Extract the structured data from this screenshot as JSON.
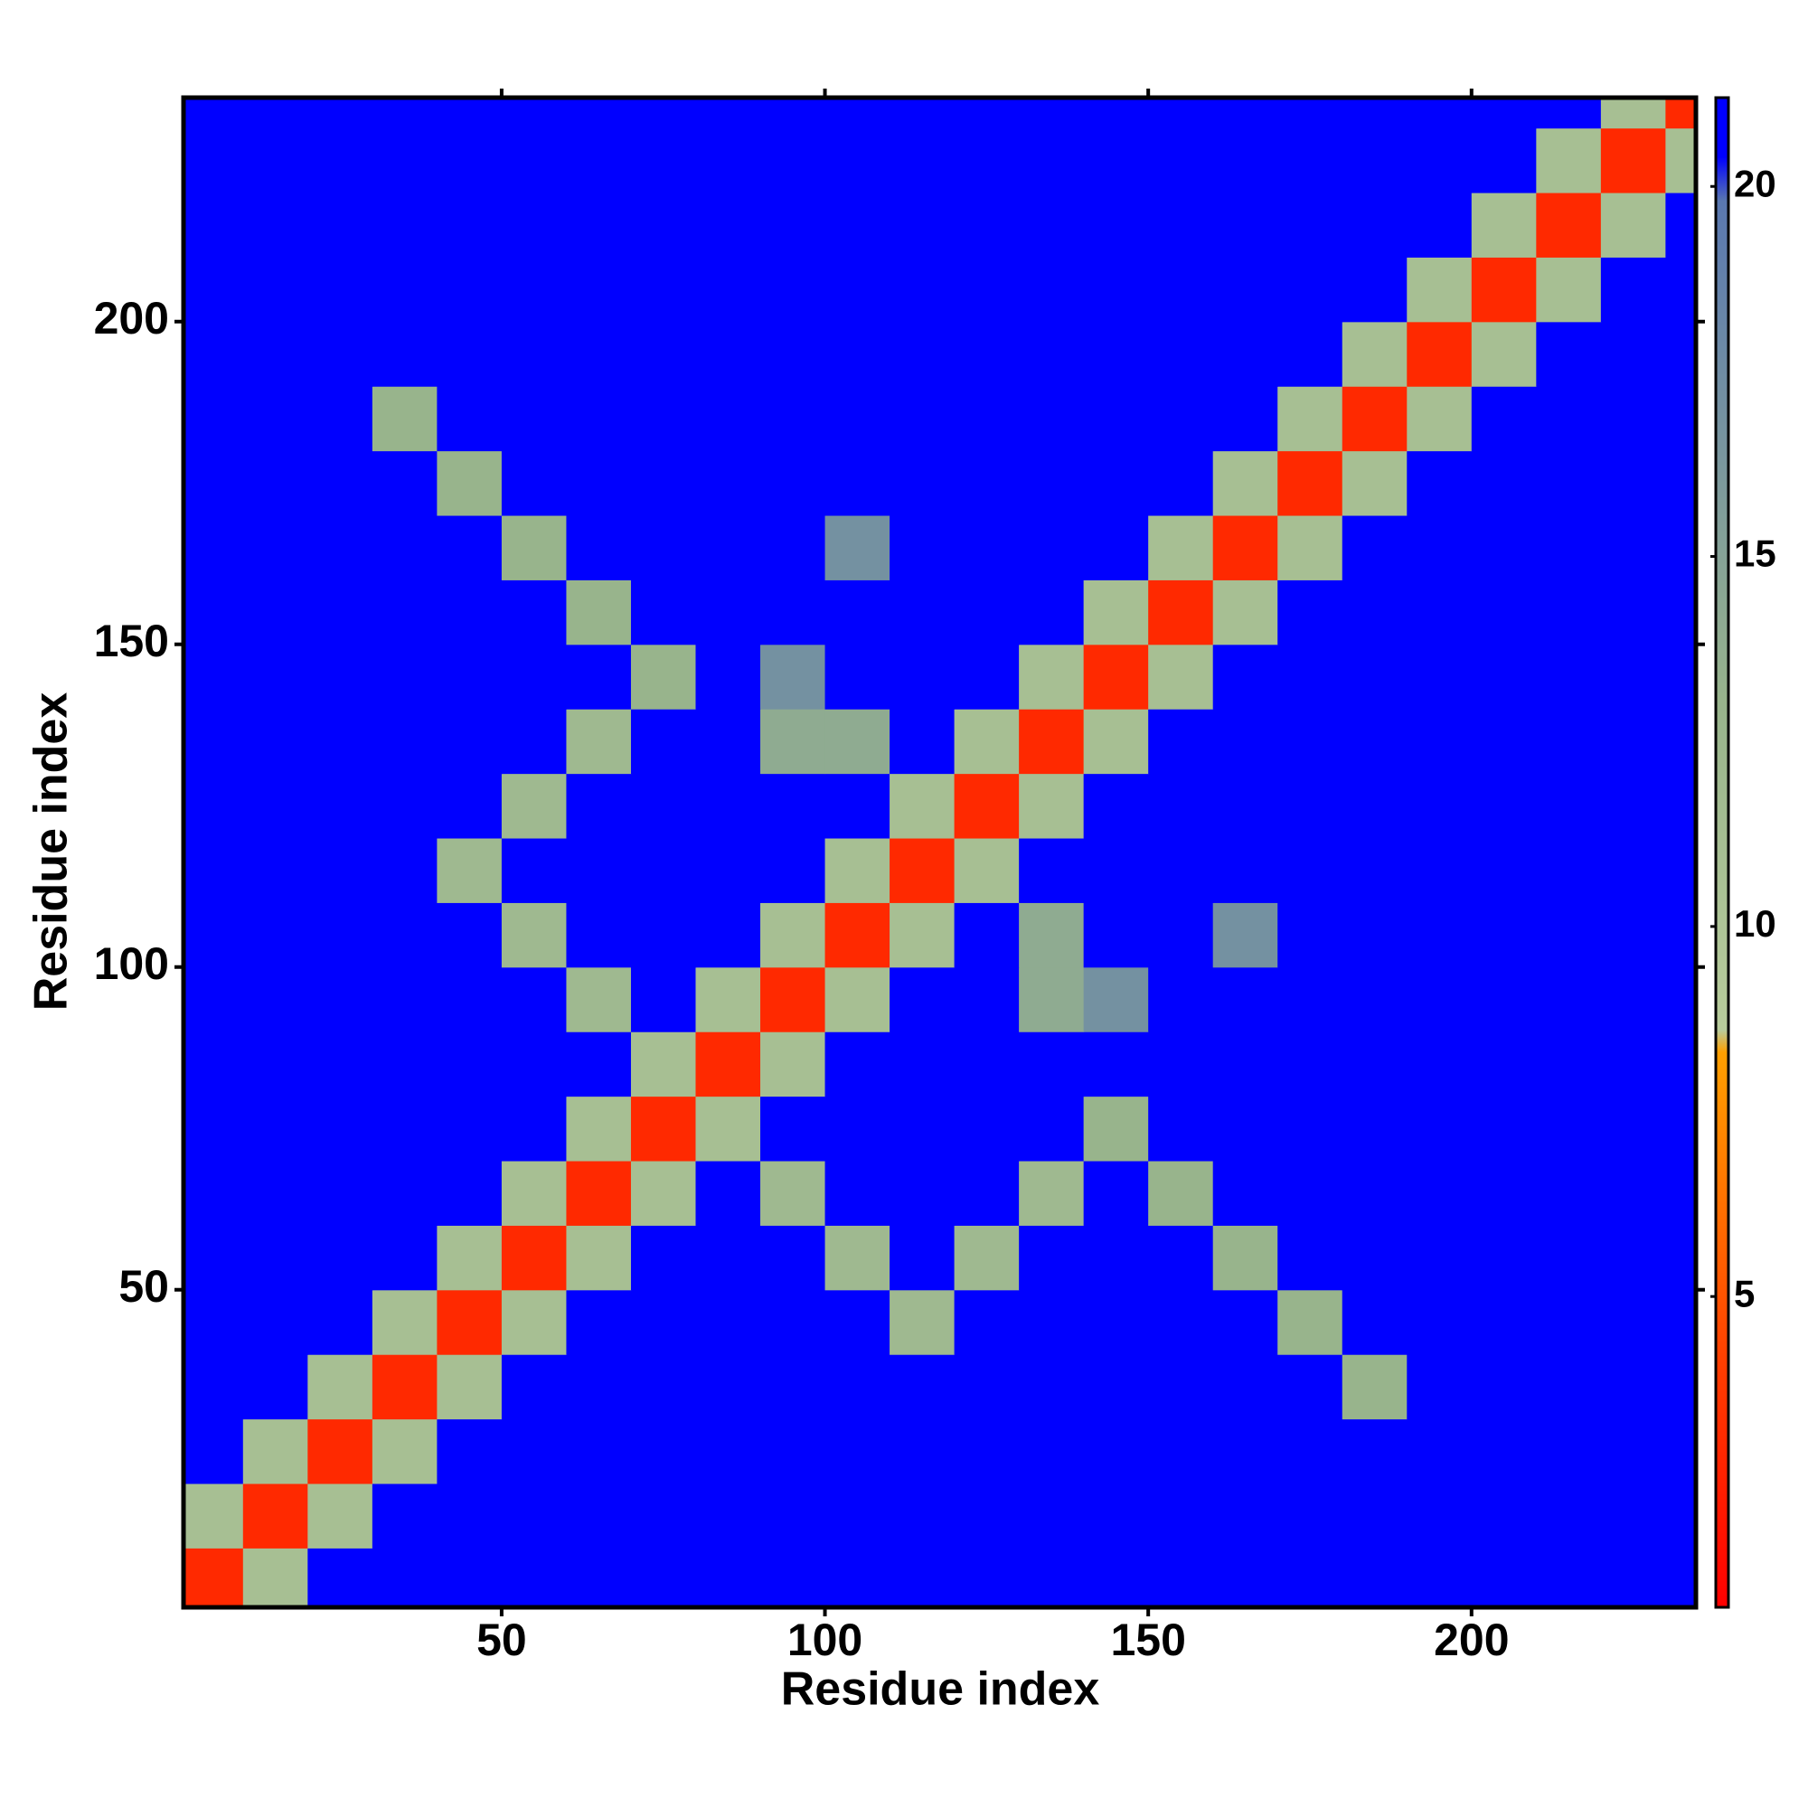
{
  "chart_data": {
    "type": "heatmap",
    "xlabel": "Residue index",
    "ylabel": "Residue index",
    "x": [
      5,
      15,
      25,
      35,
      45,
      55,
      65,
      75,
      85,
      95,
      105,
      115,
      125,
      135,
      145,
      155,
      165,
      175,
      185,
      195,
      205,
      215,
      225,
      235
    ],
    "y": [
      5,
      15,
      25,
      35,
      45,
      55,
      65,
      75,
      85,
      95,
      105,
      115,
      125,
      135,
      145,
      155,
      165,
      175,
      185,
      195,
      205,
      215,
      225,
      235
    ],
    "z": [
      [
        3,
        11,
        21,
        21,
        21,
        21,
        21,
        21,
        21,
        21,
        21,
        21,
        21,
        21,
        21,
        21,
        21,
        21,
        21,
        21,
        21,
        21,
        21,
        21
      ],
      [
        11,
        3,
        11,
        21,
        21,
        21,
        21,
        21,
        21,
        21,
        21,
        21,
        21,
        21,
        21,
        21,
        21,
        21,
        21,
        21,
        21,
        21,
        21,
        21
      ],
      [
        21,
        11,
        3,
        11,
        21,
        21,
        21,
        21,
        21,
        21,
        21,
        21,
        21,
        21,
        21,
        21,
        21,
        21,
        21,
        21,
        21,
        21,
        21,
        21
      ],
      [
        21,
        21,
        11,
        3,
        11,
        21,
        21,
        21,
        21,
        21,
        21,
        21,
        21,
        21,
        21,
        21,
        21,
        21,
        13,
        21,
        21,
        21,
        21,
        21
      ],
      [
        21,
        21,
        21,
        11,
        3,
        11,
        21,
        21,
        21,
        21,
        21,
        12,
        21,
        21,
        21,
        21,
        21,
        13,
        21,
        21,
        21,
        21,
        21,
        21
      ],
      [
        21,
        21,
        21,
        21,
        11,
        3,
        11,
        21,
        21,
        21,
        12,
        21,
        12,
        21,
        21,
        21,
        13,
        21,
        21,
        21,
        21,
        21,
        21,
        21
      ],
      [
        21,
        21,
        21,
        21,
        21,
        11,
        3,
        11,
        21,
        12,
        21,
        21,
        21,
        12,
        21,
        13,
        21,
        21,
        21,
        21,
        21,
        21,
        21,
        21
      ],
      [
        21,
        21,
        21,
        21,
        21,
        21,
        11,
        3,
        11,
        21,
        21,
        21,
        21,
        21,
        13,
        21,
        21,
        21,
        21,
        21,
        21,
        21,
        21,
        21
      ],
      [
        21,
        21,
        21,
        21,
        21,
        21,
        21,
        11,
        3,
        11,
        21,
        21,
        21,
        21,
        21,
        21,
        21,
        21,
        21,
        21,
        21,
        21,
        21,
        21
      ],
      [
        21,
        21,
        21,
        21,
        21,
        21,
        12,
        21,
        11,
        3,
        11,
        21,
        21,
        14,
        17,
        21,
        21,
        21,
        21,
        21,
        21,
        21,
        21,
        21
      ],
      [
        21,
        21,
        21,
        21,
        21,
        12,
        21,
        21,
        21,
        11,
        3,
        11,
        21,
        14,
        21,
        21,
        17,
        21,
        21,
        21,
        21,
        21,
        21,
        21
      ],
      [
        21,
        21,
        21,
        21,
        12,
        21,
        21,
        21,
        21,
        21,
        11,
        3,
        11,
        21,
        21,
        21,
        21,
        21,
        21,
        21,
        21,
        21,
        21,
        21
      ],
      [
        21,
        21,
        21,
        21,
        21,
        12,
        21,
        21,
        21,
        21,
        21,
        11,
        3,
        11,
        21,
        21,
        21,
        21,
        21,
        21,
        21,
        21,
        21,
        21
      ],
      [
        21,
        21,
        21,
        21,
        21,
        21,
        12,
        21,
        21,
        14,
        14,
        21,
        11,
        3,
        11,
        21,
        21,
        21,
        21,
        21,
        21,
        21,
        21,
        21
      ],
      [
        21,
        21,
        21,
        21,
        21,
        21,
        21,
        13,
        21,
        17,
        21,
        21,
        21,
        11,
        3,
        11,
        21,
        21,
        21,
        21,
        21,
        21,
        21,
        21
      ],
      [
        21,
        21,
        21,
        21,
        21,
        21,
        13,
        21,
        21,
        21,
        21,
        21,
        21,
        21,
        11,
        3,
        11,
        21,
        21,
        21,
        21,
        21,
        21,
        21
      ],
      [
        21,
        21,
        21,
        21,
        21,
        13,
        21,
        21,
        21,
        21,
        17,
        21,
        21,
        21,
        21,
        11,
        3,
        11,
        21,
        21,
        21,
        21,
        21,
        21
      ],
      [
        21,
        21,
        21,
        21,
        13,
        21,
        21,
        21,
        21,
        21,
        21,
        21,
        21,
        21,
        21,
        21,
        11,
        3,
        11,
        21,
        21,
        21,
        21,
        21
      ],
      [
        21,
        21,
        21,
        13,
        21,
        21,
        21,
        21,
        21,
        21,
        21,
        21,
        21,
        21,
        21,
        21,
        21,
        11,
        3,
        11,
        21,
        21,
        21,
        21
      ],
      [
        21,
        21,
        21,
        21,
        21,
        21,
        21,
        21,
        21,
        21,
        21,
        21,
        21,
        21,
        21,
        21,
        21,
        21,
        11,
        3,
        11,
        21,
        21,
        21
      ],
      [
        21,
        21,
        21,
        21,
        21,
        21,
        21,
        21,
        21,
        21,
        21,
        21,
        21,
        21,
        21,
        21,
        21,
        21,
        21,
        11,
        3,
        11,
        21,
        21
      ],
      [
        21,
        21,
        21,
        21,
        21,
        21,
        21,
        21,
        21,
        21,
        21,
        21,
        21,
        21,
        21,
        21,
        21,
        21,
        21,
        21,
        11,
        3,
        11,
        21
      ],
      [
        21,
        21,
        21,
        21,
        21,
        21,
        21,
        21,
        21,
        21,
        21,
        21,
        21,
        21,
        21,
        21,
        21,
        21,
        21,
        21,
        21,
        11,
        3,
        11
      ],
      [
        21,
        21,
        21,
        21,
        21,
        21,
        21,
        21,
        21,
        21,
        21,
        21,
        21,
        21,
        21,
        21,
        21,
        21,
        21,
        21,
        21,
        21,
        11,
        3
      ]
    ],
    "xlim": [
      0.8,
      234.7
    ],
    "ylim": [
      0.8,
      234.7
    ],
    "xticks": [
      50,
      100,
      150,
      200
    ],
    "yticks": [
      50,
      100,
      150,
      200
    ],
    "zlim": [
      0.8,
      21.2
    ],
    "zticks": [
      5,
      10,
      15,
      20
    ],
    "colorscale": [
      [
        0.8,
        "#ff0000"
      ],
      [
        4,
        "#ff3c00"
      ],
      [
        8.3,
        "#ffa000"
      ],
      [
        8.6,
        "#b8cc9c"
      ],
      [
        13,
        "#98b48c"
      ],
      [
        19.8,
        "#5a78b0"
      ],
      [
        20.4,
        "#0000ff"
      ],
      [
        21.2,
        "#0000ff"
      ]
    ]
  }
}
